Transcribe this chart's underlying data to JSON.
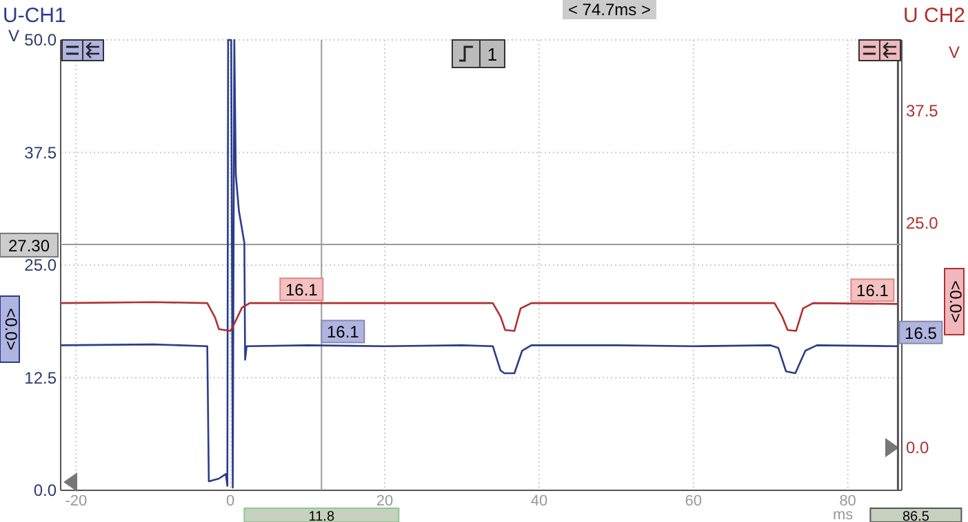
{
  "chart_data": {
    "type": "line",
    "xlabel": "ms",
    "ylabel": "V",
    "y2label": "V",
    "xlim": [
      -22,
      87
    ],
    "xticks": [
      -20,
      0,
      20,
      40,
      60,
      80
    ],
    "ylim": [
      0,
      50
    ],
    "yticks": [
      {
        "value": 0,
        "label": "0.0"
      },
      {
        "value": 12.5,
        "label": "12.5"
      },
      {
        "value": 25,
        "label": "25.0"
      },
      {
        "value": 37.5,
        "label": "37.5"
      },
      {
        "value": 50,
        "label": "50.0"
      }
    ],
    "y2lim": [
      -4.75,
      45.4
    ],
    "y2ticks": [
      {
        "value": 0,
        "label": "0.0"
      },
      {
        "value": 25,
        "label": "25.0"
      },
      {
        "value": 37.5,
        "label": "37.5"
      }
    ],
    "grid": true,
    "legend": false,
    "line_style": "solid",
    "marker": "none",
    "series": [
      {
        "name": "U-CH1",
        "color": "#2a3c8c",
        "x": [
          -22,
          -10,
          -3,
          -2.8,
          -1.5,
          -0.6,
          -0.4,
          -0.3,
          0.1,
          0.3,
          0.5,
          0.7,
          1.1,
          1.6,
          1.8,
          1.9,
          2.1,
          10,
          20,
          30,
          34,
          35,
          35.5,
          36.8,
          37.8,
          39,
          50,
          60,
          70,
          71,
          72,
          73.2,
          74.5,
          76,
          86.5
        ],
        "values": [
          16.1,
          16.2,
          16,
          1,
          1.3,
          1.8,
          0.5,
          50,
          50,
          0.3,
          50,
          35,
          31,
          28.5,
          27.5,
          14.5,
          16,
          16.1,
          16,
          16.1,
          16,
          13.3,
          13,
          13,
          15.5,
          16.1,
          16.1,
          16,
          16.1,
          15.8,
          13.2,
          13,
          15.5,
          16.1,
          16
        ]
      },
      {
        "name": "U CH2",
        "color": "#b03030",
        "axis": "y2",
        "x": [
          -22,
          -10,
          -3,
          -2,
          -1.5,
          0,
          0.5,
          1.5,
          2.5,
          20,
          34,
          35,
          35.6,
          36.8,
          37.6,
          39,
          60,
          70.5,
          71.5,
          72.2,
          73.3,
          74.2,
          75.5,
          86.5
        ],
        "values": [
          16.1,
          16.2,
          16.1,
          14.5,
          13.2,
          13,
          13.8,
          15.6,
          16.1,
          16.1,
          16.1,
          14.6,
          13.1,
          13,
          15.5,
          16.1,
          16.1,
          16.1,
          14.6,
          13.1,
          13,
          15.5,
          16.1,
          16
        ]
      }
    ],
    "ref_lines": [
      {
        "axis": "x",
        "value": 11.8,
        "label": "11.8",
        "color": "#9a9a9a"
      },
      {
        "axis": "x",
        "value": 86.5,
        "label": "86.5",
        "color": "#555555"
      },
      {
        "axis": "y",
        "value": 27.3,
        "label": "27.30",
        "color": "#9a9a9a"
      }
    ],
    "annotations": [
      "< 74.7ms >",
      "1",
      "<0.0>",
      "<0.0>",
      "16.1",
      "16.1",
      "16.5",
      "16.1"
    ]
  }
}
